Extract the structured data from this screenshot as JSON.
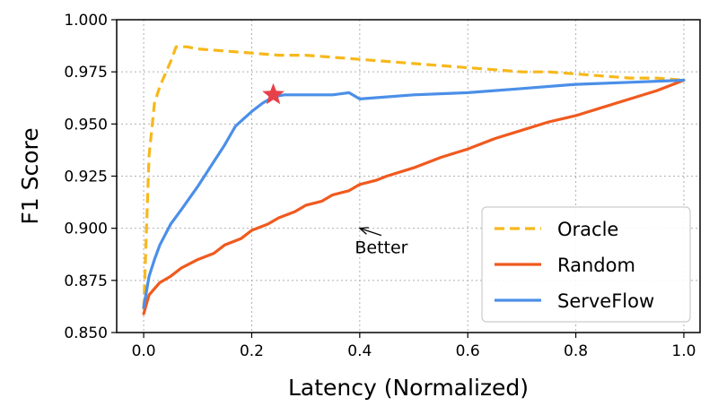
{
  "chart_data": {
    "type": "line",
    "title": "",
    "xlabel": "Latency (Normalized)",
    "ylabel": "F1 Score",
    "xlim": [
      -0.05,
      1.03
    ],
    "ylim": [
      0.85,
      1.0
    ],
    "grid": true,
    "x_ticks": [
      "0.0",
      "0.2",
      "0.4",
      "0.6",
      "0.8",
      "1.0"
    ],
    "y_ticks": [
      "0.850",
      "0.875",
      "0.900",
      "0.925",
      "0.950",
      "0.975",
      "1.000"
    ],
    "legend_position": "lower right",
    "series": [
      {
        "name": "Oracle",
        "color": "#f7b81b",
        "style": "dashed",
        "x": [
          0.0,
          0.01,
          0.02,
          0.03,
          0.05,
          0.06,
          0.08,
          0.1,
          0.15,
          0.2,
          0.25,
          0.3,
          0.35,
          0.4,
          0.45,
          0.5,
          0.55,
          0.6,
          0.65,
          0.7,
          0.75,
          0.8,
          0.85,
          0.9,
          0.95,
          1.0
        ],
        "y": [
          0.861,
          0.935,
          0.96,
          0.968,
          0.98,
          0.987,
          0.987,
          0.986,
          0.985,
          0.984,
          0.983,
          0.983,
          0.982,
          0.981,
          0.98,
          0.979,
          0.978,
          0.977,
          0.976,
          0.975,
          0.975,
          0.974,
          0.973,
          0.972,
          0.972,
          0.971
        ]
      },
      {
        "name": "Random",
        "color": "#f05a1e",
        "style": "solid",
        "x": [
          0.0,
          0.01,
          0.02,
          0.03,
          0.05,
          0.07,
          0.1,
          0.13,
          0.15,
          0.18,
          0.2,
          0.23,
          0.25,
          0.28,
          0.3,
          0.33,
          0.35,
          0.38,
          0.4,
          0.43,
          0.45,
          0.5,
          0.55,
          0.6,
          0.65,
          0.7,
          0.75,
          0.8,
          0.85,
          0.9,
          0.95,
          1.0
        ],
        "y": [
          0.859,
          0.868,
          0.871,
          0.874,
          0.877,
          0.881,
          0.885,
          0.888,
          0.892,
          0.895,
          0.899,
          0.902,
          0.905,
          0.908,
          0.911,
          0.913,
          0.916,
          0.918,
          0.921,
          0.923,
          0.925,
          0.929,
          0.934,
          0.938,
          0.943,
          0.947,
          0.951,
          0.954,
          0.958,
          0.962,
          0.966,
          0.971
        ]
      },
      {
        "name": "ServeFlow",
        "color": "#4b8fe8",
        "style": "solid",
        "x": [
          0.0,
          0.01,
          0.02,
          0.03,
          0.05,
          0.07,
          0.1,
          0.13,
          0.15,
          0.17,
          0.2,
          0.22,
          0.24,
          0.26,
          0.3,
          0.35,
          0.38,
          0.4,
          0.5,
          0.6,
          0.7,
          0.8,
          0.9,
          1.0
        ],
        "y": [
          0.862,
          0.877,
          0.885,
          0.892,
          0.902,
          0.909,
          0.92,
          0.932,
          0.94,
          0.949,
          0.956,
          0.96,
          0.963,
          0.964,
          0.964,
          0.964,
          0.965,
          0.962,
          0.964,
          0.965,
          0.967,
          0.969,
          0.97,
          0.971
        ]
      }
    ],
    "markers": [
      {
        "shape": "star",
        "x": 0.24,
        "y": 0.964,
        "color": "#e8404a"
      }
    ],
    "annotations": [
      {
        "text": "Better",
        "x": 0.44,
        "y": 0.888,
        "arrow_to": [
          0.4,
          0.9
        ]
      }
    ]
  }
}
